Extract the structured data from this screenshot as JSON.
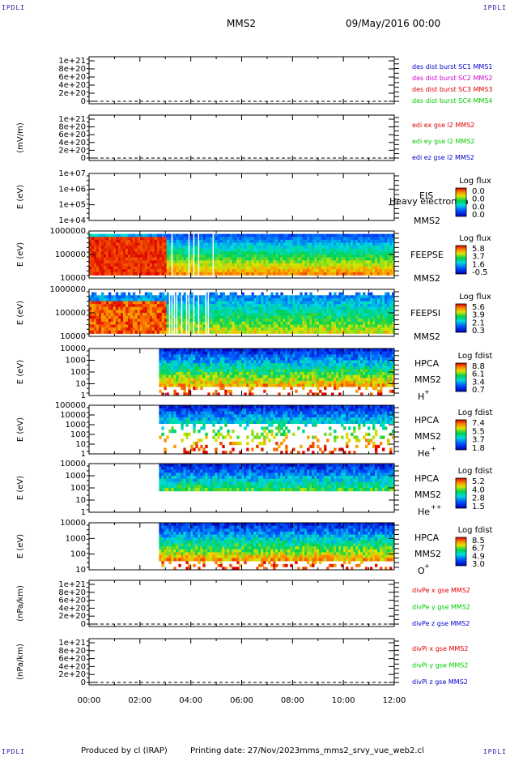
{
  "header": {
    "corner_label": "IPDLI",
    "spacecraft": "MMS2",
    "date": "09/May/2016 00:00"
  },
  "footer": {
    "produced_by": "Produced by cl (IRAP)",
    "printing_date": "Printing date: 27/Nov/2023",
    "script_name": "mms_mms2_srvy_vue_web2.cl"
  },
  "colors": {
    "blue": "#0000cc",
    "magenta": "#cc00cc",
    "red": "#dd0000",
    "green": "#00cc00"
  },
  "chart_data": {
    "type": "heatmap",
    "x_axis": {
      "range": [
        "00:00",
        "12:00"
      ],
      "tick_labels": [
        "00:00",
        "02:00",
        "04:00",
        "06:00",
        "08:00",
        "10:00",
        "12:00"
      ]
    },
    "panels": [
      {
        "id": "des-dist",
        "type": "line",
        "ylabel": "",
        "yticks": [
          "1e+21",
          "8e+20",
          "6e+20",
          "4e+20",
          "2e+20",
          "0"
        ],
        "series": [
          {
            "name": "des dist burst SC1 MMS1",
            "color": "#0000cc"
          },
          {
            "name": "des dist burst SC2 MMS2",
            "color": "#cc00cc"
          },
          {
            "name": "des dist burst SC3 MMS3",
            "color": "#dd0000"
          },
          {
            "name": "des dist burst SC4 MMS4",
            "color": "#00cc00"
          }
        ]
      },
      {
        "id": "edi-e",
        "type": "line",
        "ylabel": "(mV/m)",
        "yticks": [
          "1e+21",
          "8e+20",
          "6e+20",
          "4e+20",
          "2e+20",
          "0"
        ],
        "series": [
          {
            "name": "edi ex gse l2 MMS2",
            "color": "#dd0000"
          },
          {
            "name": "edi ey gse l2 MMS2",
            "color": "#00cc00"
          },
          {
            "name": "edi ez gse l2 MMS2",
            "color": "#0000cc"
          }
        ]
      },
      {
        "id": "eis",
        "type": "heatmap",
        "ylabel": "E (eV)",
        "yticks": [
          "1e+07",
          "1e+06",
          "1e+05",
          "1e+04"
        ],
        "instrument": "EIS",
        "overlay_text": "Heavy electron ta",
        "spacecraft": "MMS2",
        "colorbar": {
          "title": "Log flux",
          "ticks": [
            "0.0",
            "0.0",
            "0.0",
            "0.0"
          ]
        },
        "coverage": {
          "start_hour": null
        }
      },
      {
        "id": "feeps-e",
        "type": "heatmap",
        "ylabel": "E (eV)",
        "yticks": [
          "1000000",
          "100000",
          "10000"
        ],
        "instrument": "FEEPSE",
        "spacecraft": "MMS2",
        "colorbar": {
          "title": "Log flux",
          "ticks": [
            "5.8",
            "3.7",
            "1.6",
            "-0.5"
          ]
        },
        "coverage": {
          "start_hour": 0
        }
      },
      {
        "id": "feeps-i",
        "type": "heatmap",
        "ylabel": "E (eV)",
        "yticks": [
          "1000000",
          "100000",
          "10000"
        ],
        "instrument": "FEEPSI",
        "spacecraft": "MMS2",
        "colorbar": {
          "title": "Log flux",
          "ticks": [
            "5.6",
            "3.9",
            "2.1",
            "0.3"
          ]
        },
        "coverage": {
          "start_hour": 0
        }
      },
      {
        "id": "hpca-h",
        "type": "heatmap",
        "ylabel": "E (eV)",
        "yticks": [
          "10000",
          "1000",
          "100",
          "10",
          "1"
        ],
        "instrument": "HPCA",
        "spacecraft": "MMS2",
        "species": "H",
        "charge": "+",
        "colorbar": {
          "title": "Log fdist",
          "ticks": [
            "8.8",
            "6.1",
            "3.4",
            "0.7"
          ]
        },
        "coverage": {
          "start_hour": 2.75
        }
      },
      {
        "id": "hpca-he",
        "type": "heatmap",
        "ylabel": "E (eV)",
        "yticks": [
          "100000",
          "10000",
          "1000",
          "100",
          "10",
          "1"
        ],
        "instrument": "HPCA",
        "spacecraft": "MMS2",
        "species": "He",
        "charge": "+",
        "colorbar": {
          "title": "Log fdist",
          "ticks": [
            "7.4",
            "5.5",
            "3.7",
            "1.8"
          ]
        },
        "coverage": {
          "start_hour": 2.75
        }
      },
      {
        "id": "hpca-he2",
        "type": "heatmap",
        "ylabel": "E (eV)",
        "yticks": [
          "10000",
          "1000",
          "100",
          "10",
          "1"
        ],
        "instrument": "HPCA",
        "spacecraft": "MMS2",
        "species": "He",
        "charge": "++",
        "colorbar": {
          "title": "Log fdist",
          "ticks": [
            "5.2",
            "4.0",
            "2.8",
            "1.5"
          ]
        },
        "coverage": {
          "start_hour": 2.75
        }
      },
      {
        "id": "hpca-o",
        "type": "heatmap",
        "ylabel": "E (eV)",
        "yticks": [
          "10000",
          "1000",
          "100",
          "10"
        ],
        "instrument": "HPCA",
        "spacecraft": "MMS2",
        "species": "O",
        "charge": "+",
        "colorbar": {
          "title": "Log fdist",
          "ticks": [
            "8.5",
            "6.7",
            "4.9",
            "3.0"
          ]
        },
        "coverage": {
          "start_hour": 2.75
        }
      },
      {
        "id": "divpe",
        "type": "line",
        "ylabel": "(nPa/km)",
        "yticks": [
          "1e+21",
          "8e+20",
          "6e+20",
          "4e+20",
          "2e+20",
          "0"
        ],
        "series": [
          {
            "name": "divPe x gse MMS2",
            "color": "#dd0000"
          },
          {
            "name": "divPe y gse MMS2",
            "color": "#00cc00"
          },
          {
            "name": "divPe z gse MMS2",
            "color": "#0000cc"
          }
        ]
      },
      {
        "id": "divpi",
        "type": "line",
        "ylabel": "(nPa/km)",
        "yticks": [
          "1e+21",
          "8e+20",
          "6e+20",
          "4e+20",
          "2e+20",
          "0"
        ],
        "series": [
          {
            "name": "divPi x gse MMS2",
            "color": "#dd0000"
          },
          {
            "name": "divPi y gse MMS2",
            "color": "#00cc00"
          },
          {
            "name": "divPi z gse MMS2",
            "color": "#0000cc"
          }
        ]
      }
    ]
  }
}
